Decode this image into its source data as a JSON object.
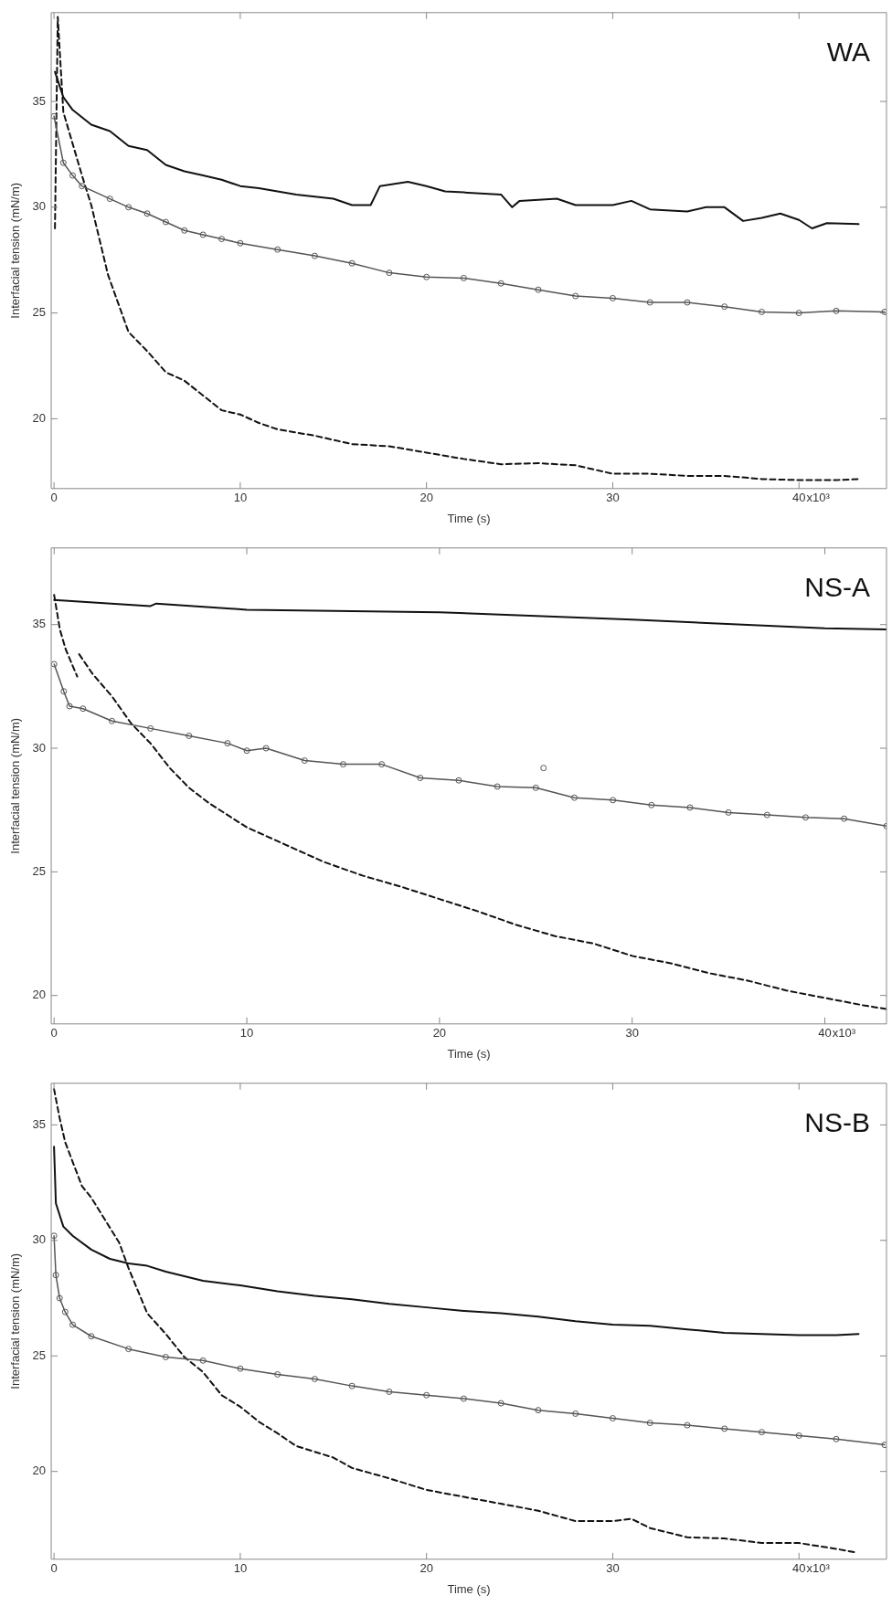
{
  "chart_data": [
    {
      "type": "line",
      "title": "WA",
      "xlabel": "Time (s)",
      "ylabel": "Interfacial tension (mN/m)",
      "annotations": [
        "x10³"
      ],
      "xlim": [
        -0.15,
        44.7
      ],
      "xticks": [
        0,
        10,
        20,
        30,
        40
      ],
      "ylim": [
        16.7,
        39.2
      ],
      "yticks": [
        20,
        25,
        30,
        35
      ],
      "series": [
        {
          "color": "#111111",
          "line_style": "solid",
          "marker": "none",
          "x": [
            0.05,
            0.5,
            1,
            2,
            3,
            4,
            5,
            6,
            7,
            8,
            9,
            10,
            11,
            12,
            13,
            14,
            15,
            16,
            17,
            17.5,
            19,
            20,
            21,
            22,
            24,
            24.6,
            25,
            27,
            28,
            30,
            31,
            32,
            34,
            35,
            36,
            37,
            38,
            39,
            40,
            40.7,
            41.5,
            43.2
          ],
          "values": [
            36.4,
            35.2,
            34.6,
            33.9,
            33.6,
            32.9,
            32.7,
            32.0,
            31.7,
            31.5,
            31.3,
            31.0,
            30.9,
            30.75,
            30.6,
            30.5,
            30.4,
            30.1,
            30.1,
            31.0,
            31.2,
            31.0,
            30.75,
            30.7,
            30.6,
            30.0,
            30.3,
            30.4,
            30.1,
            30.1,
            30.3,
            29.9,
            29.8,
            30.0,
            30.0,
            29.35,
            29.5,
            29.7,
            29.4,
            29.0,
            29.25,
            29.2
          ]
        },
        {
          "color": "#555555",
          "line_style": "solid",
          "marker": "circle",
          "x": [
            0,
            0.5,
            1,
            1.5,
            3,
            4,
            5,
            6,
            7,
            8,
            9,
            10,
            12,
            14,
            16,
            18,
            20,
            22,
            24,
            26,
            28,
            30,
            32,
            34,
            36,
            38,
            40,
            42,
            44.6
          ],
          "values": [
            34.3,
            32.1,
            31.5,
            31.0,
            30.4,
            30.0,
            29.7,
            29.3,
            28.9,
            28.7,
            28.5,
            28.3,
            28.0,
            27.7,
            27.35,
            26.9,
            26.7,
            26.65,
            26.4,
            26.1,
            25.8,
            25.7,
            25.5,
            25.5,
            25.3,
            25.05,
            25.0,
            25.1,
            25.05
          ]
        },
        {
          "color": "#111111",
          "line_style": "dashed",
          "marker": "none",
          "x": [
            0.05,
            0.2,
            0.5,
            1.0,
            1.5,
            2,
            2.9,
            4,
            5,
            6,
            7,
            8,
            9,
            10,
            11,
            12,
            14,
            16,
            18,
            20,
            22,
            24,
            26,
            28,
            30,
            32,
            34,
            36,
            38,
            40,
            42,
            43.2
          ],
          "values": [
            29.0,
            39.0,
            34.5,
            33.0,
            31.5,
            30.1,
            26.8,
            24.1,
            23.2,
            22.2,
            21.8,
            21.1,
            20.4,
            20.2,
            19.8,
            19.5,
            19.2,
            18.8,
            18.7,
            18.4,
            18.1,
            17.85,
            17.9,
            17.8,
            17.4,
            17.4,
            17.3,
            17.3,
            17.15,
            17.1,
            17.1,
            17.15
          ]
        }
      ]
    },
    {
      "type": "line",
      "title": "NS-A",
      "xlabel": "Time (s)",
      "ylabel": "Interfacial tension (mN/m)",
      "annotations": [
        "x10³"
      ],
      "xlim": [
        -0.15,
        43.2
      ],
      "xticks": [
        0,
        10,
        20,
        30,
        40
      ],
      "ylim": [
        18.85,
        38.1
      ],
      "yticks": [
        20,
        25,
        30,
        35
      ],
      "series": [
        {
          "color": "#111111",
          "line_style": "solid",
          "marker": "none",
          "x": [
            0,
            5,
            5.3,
            10,
            20,
            30,
            40,
            43.2
          ],
          "values": [
            36.0,
            35.75,
            35.85,
            35.6,
            35.5,
            35.2,
            34.85,
            34.8
          ]
        },
        {
          "color": "#555555",
          "line_style": "solid",
          "marker": "circle",
          "x": [
            0,
            0.5,
            0.8,
            1.5,
            3,
            5,
            7,
            9,
            10,
            11,
            13,
            15,
            17,
            19,
            21,
            23,
            25,
            27,
            29,
            31,
            33,
            35,
            37,
            39,
            41,
            43.2
          ],
          "values": [
            33.4,
            32.3,
            31.7,
            31.6,
            31.1,
            30.8,
            30.5,
            30.2,
            29.9,
            30.0,
            29.5,
            29.35,
            29.35,
            28.8,
            28.7,
            28.45,
            28.4,
            28.0,
            27.9,
            27.7,
            27.6,
            27.4,
            27.3,
            27.2,
            27.15,
            26.85
          ]
        },
        {
          "type": "scatter",
          "color": "#555555",
          "marker": "circle",
          "x": [
            25.4
          ],
          "values": [
            29.2
          ]
        },
        {
          "color": "#111111",
          "line_style": "dashed",
          "marker": "none",
          "x": [
            0,
            0.3,
            0.6,
            1.2,
            1.25,
            1.3,
            2,
            3,
            4,
            5,
            6,
            7,
            8,
            10,
            12,
            14,
            16,
            18,
            20,
            22,
            24,
            26,
            28,
            30,
            32,
            34,
            36,
            38,
            40,
            42,
            43.2
          ],
          "values": [
            36.2,
            34.8,
            34.0,
            32.9,
            null,
            33.8,
            33.0,
            32.1,
            31.0,
            30.2,
            29.2,
            28.4,
            27.8,
            26.8,
            26.1,
            25.4,
            24.85,
            24.4,
            23.9,
            23.4,
            22.85,
            22.4,
            22.1,
            21.6,
            21.3,
            20.9,
            20.6,
            20.2,
            19.9,
            19.6,
            19.45
          ]
        }
      ]
    },
    {
      "type": "line",
      "title": "NS-B",
      "xlabel": "Time (s)",
      "ylabel": "Interfacial tension (mN/m)",
      "annotations": [
        "x10³"
      ],
      "xlim": [
        -0.15,
        44.7
      ],
      "xticks": [
        0,
        10,
        20,
        30,
        40
      ],
      "ylim": [
        16.2,
        36.8
      ],
      "yticks": [
        20,
        25,
        30,
        35
      ],
      "series": [
        {
          "color": "#111111",
          "line_style": "solid",
          "marker": "none",
          "x": [
            0,
            0.1,
            0.5,
            1,
            2,
            3,
            4,
            5,
            6,
            8,
            10,
            12,
            14,
            16,
            18,
            20,
            22,
            24,
            26,
            28,
            30,
            32,
            34,
            36,
            38,
            40,
            42,
            43.2
          ],
          "values": [
            34.05,
            31.6,
            30.6,
            30.2,
            29.6,
            29.2,
            29.0,
            28.9,
            28.65,
            28.25,
            28.05,
            27.8,
            27.6,
            27.45,
            27.25,
            27.1,
            26.95,
            26.85,
            26.7,
            26.5,
            26.35,
            26.3,
            26.15,
            26.0,
            25.95,
            25.9,
            25.9,
            25.95
          ]
        },
        {
          "color": "#555555",
          "line_style": "solid",
          "marker": "circle",
          "x": [
            0,
            0.1,
            0.3,
            0.6,
            1,
            2,
            4,
            6,
            8,
            10,
            12,
            14,
            16,
            18,
            20,
            22,
            24,
            26,
            28,
            30,
            32,
            34,
            36,
            38,
            40,
            42,
            44.6
          ],
          "values": [
            30.2,
            28.5,
            27.5,
            26.9,
            26.35,
            25.85,
            25.3,
            24.95,
            24.8,
            24.45,
            24.2,
            24.0,
            23.7,
            23.45,
            23.3,
            23.15,
            22.95,
            22.65,
            22.5,
            22.3,
            22.1,
            22.0,
            21.85,
            21.7,
            21.55,
            21.4,
            21.15
          ]
        },
        {
          "color": "#111111",
          "line_style": "dashed",
          "marker": "none",
          "x": [
            0,
            0.3,
            0.6,
            1,
            1.5,
            2,
            3,
            3.5,
            4,
            5,
            6,
            7,
            8,
            9,
            10,
            11,
            12,
            13,
            14,
            15,
            16,
            18,
            20,
            22,
            24,
            26,
            28,
            30,
            31,
            32,
            34,
            36,
            38,
            40,
            42,
            43
          ],
          "values": [
            36.55,
            35.3,
            34.25,
            33.4,
            32.35,
            31.85,
            30.55,
            29.9,
            28.8,
            26.85,
            25.95,
            24.95,
            24.3,
            23.3,
            22.8,
            22.15,
            21.65,
            21.1,
            20.85,
            20.6,
            20.15,
            19.7,
            19.2,
            18.9,
            18.6,
            18.3,
            17.85,
            17.85,
            17.95,
            17.55,
            17.15,
            17.1,
            16.9,
            16.9,
            16.65,
            16.5
          ]
        }
      ]
    }
  ]
}
